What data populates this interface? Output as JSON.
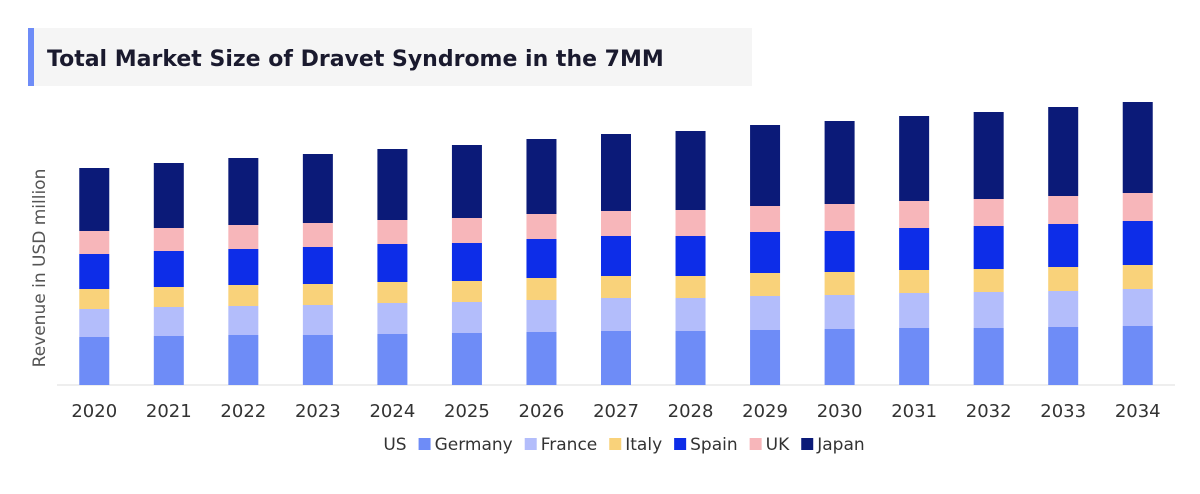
{
  "chart_data": {
    "type": "stacked_bar",
    "title": "Total Market Size of Dravet Syndrome  in the 7MM",
    "y_label": "Revenue in USD million",
    "categories": [
      "2020",
      "2021",
      "2022",
      "2023",
      "2024",
      "2025",
      "2026",
      "2027",
      "2028",
      "2029",
      "2030",
      "2031",
      "2032",
      "2033",
      "2034"
    ],
    "series": [
      {
        "name": "US",
        "color": "#ffffff",
        "values": [
          0,
          0,
          0,
          0,
          0,
          0,
          0,
          0,
          0,
          0,
          0,
          0,
          0,
          0,
          0
        ]
      },
      {
        "name": "Germany",
        "color": "#6e8cf7",
        "values": [
          48,
          49,
          50,
          50,
          51,
          52,
          53,
          54,
          54,
          55,
          56,
          57,
          57,
          58,
          59
        ]
      },
      {
        "name": "France",
        "color": "#b3bdfb",
        "values": [
          28,
          29,
          29,
          30,
          31,
          31,
          32,
          33,
          33,
          34,
          34,
          35,
          36,
          36,
          37
        ]
      },
      {
        "name": "Italy",
        "color": "#f9d27a",
        "values": [
          20,
          20,
          21,
          21,
          21,
          21,
          22,
          22,
          22,
          23,
          23,
          23,
          23,
          24,
          24
        ]
      },
      {
        "name": "Spain",
        "color": "#0d2de8",
        "values": [
          35,
          36,
          36,
          37,
          38,
          38,
          39,
          40,
          40,
          41,
          41,
          42,
          43,
          43,
          44
        ]
      },
      {
        "name": "UK",
        "color": "#f7b6ba",
        "values": [
          23,
          23,
          24,
          24,
          24,
          25,
          25,
          25,
          26,
          26,
          27,
          27,
          27,
          28,
          28
        ]
      },
      {
        "name": "Japan",
        "color": "#0b1a78",
        "values": [
          63,
          65,
          67,
          69,
          71,
          73,
          75,
          77,
          79,
          81,
          83,
          85,
          87,
          89,
          91
        ]
      }
    ],
    "ylim": [
      0,
      285
    ]
  }
}
